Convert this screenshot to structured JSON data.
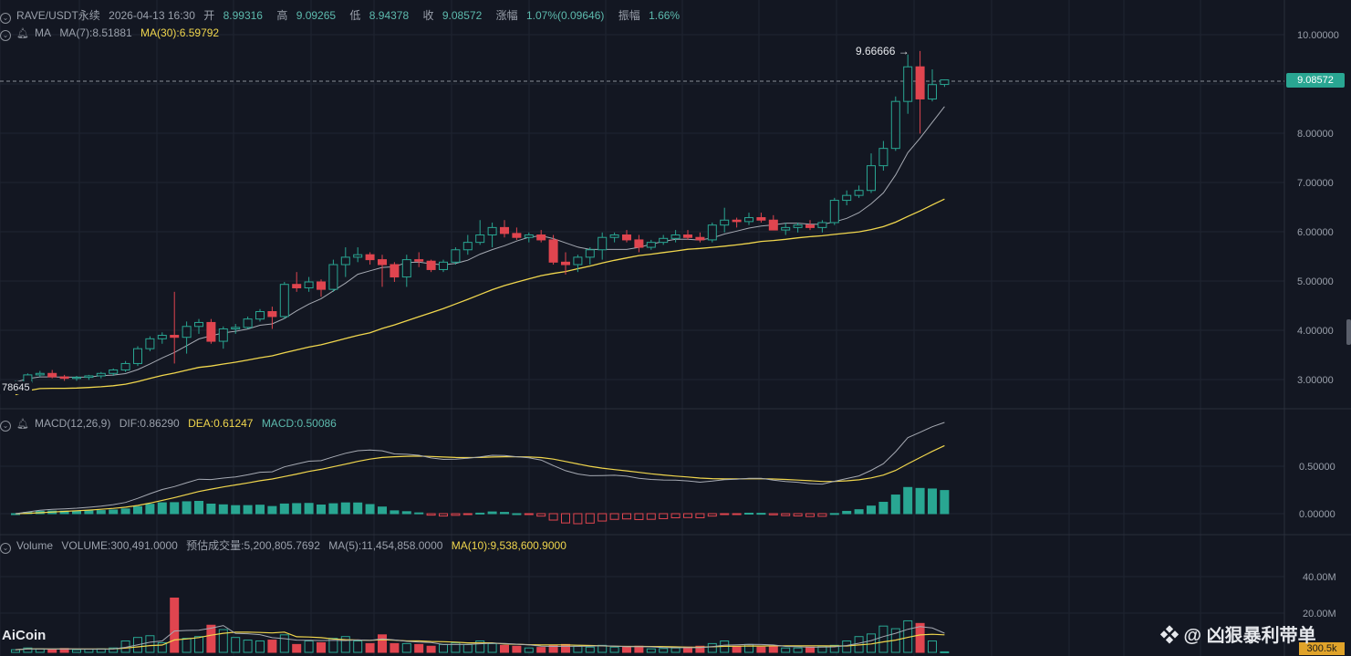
{
  "header": {
    "symbol": "RAVE/USDT永续",
    "datetime": "2026-04-13 16:30",
    "open_label": "开",
    "open": "8.99316",
    "high_label": "高",
    "high": "9.09265",
    "low_label": "低",
    "low": "8.94378",
    "close_label": "收",
    "close": "9.08572",
    "change_label": "涨幅",
    "change": "1.07%(0.09646)",
    "amp_label": "振幅",
    "amp": "1.66%"
  },
  "ma_legend": {
    "label": "MA",
    "ma7": "MA(7):8.51881",
    "ma30": "MA(30):6.59792"
  },
  "macd_legend": {
    "label": "MACD(12,26,9)",
    "dif": "DIF:0.86290",
    "dea": "DEA:0.61247",
    "macd": "MACD:0.50086"
  },
  "volume_legend": {
    "label": "Volume",
    "volume": "VOLUME:300,491.0000",
    "est": "预估成交量:5,200,805.7692",
    "ma5": "MA(5):11,454,858.0000",
    "ma10": "MA(10):9,538,600.9000"
  },
  "price_axis_labels": [
    "10.00000",
    "9.08572",
    "8.00000",
    "7.00000",
    "6.00000",
    "5.00000",
    "4.00000",
    "3.00000"
  ],
  "macd_axis_labels": [
    "0.50000",
    "0.00000"
  ],
  "volume_axis_labels": [
    "40.00M",
    "20.00M"
  ],
  "current_price": "9.08572",
  "current_volume": "300.5k",
  "high_marker": "9.66666 →",
  "left_value": "78645",
  "logo": "AiCoin",
  "watermark": "❖ @ 凶狠暴利带单",
  "colors": {
    "up": "#29a692",
    "down": "#e0454f",
    "ma7": "#a6aab3",
    "ma30": "#f0d64d",
    "background": "#131722"
  },
  "chart_data": {
    "type": "candlestick",
    "ohlc": [
      [
        2.88,
        3.0,
        2.85,
        2.97
      ],
      [
        2.97,
        3.15,
        2.95,
        3.12
      ],
      [
        3.12,
        3.2,
        3.08,
        3.15
      ],
      [
        3.15,
        3.22,
        3.05,
        3.08
      ],
      [
        3.08,
        3.12,
        3.0,
        3.05
      ],
      [
        3.05,
        3.1,
        3.0,
        3.07
      ],
      [
        3.07,
        3.12,
        3.02,
        3.1
      ],
      [
        3.1,
        3.18,
        3.05,
        3.15
      ],
      [
        3.15,
        3.25,
        3.1,
        3.22
      ],
      [
        3.22,
        3.4,
        3.18,
        3.35
      ],
      [
        3.35,
        3.7,
        3.3,
        3.65
      ],
      [
        3.65,
        3.9,
        3.6,
        3.85
      ],
      [
        3.85,
        3.98,
        3.75,
        3.92
      ],
      [
        3.92,
        4.8,
        3.35,
        3.88
      ],
      [
        3.88,
        4.2,
        3.55,
        4.1
      ],
      [
        4.1,
        4.25,
        3.95,
        4.18
      ],
      [
        4.18,
        4.25,
        3.75,
        3.8
      ],
      [
        3.8,
        4.1,
        3.65,
        4.05
      ],
      [
        4.05,
        4.15,
        3.95,
        4.08
      ],
      [
        4.08,
        4.3,
        4.05,
        4.25
      ],
      [
        4.25,
        4.45,
        4.2,
        4.4
      ],
      [
        4.4,
        4.5,
        4.05,
        4.3
      ],
      [
        4.3,
        5.0,
        4.25,
        4.95
      ],
      [
        4.95,
        5.2,
        4.8,
        4.88
      ],
      [
        4.88,
        5.1,
        4.8,
        5.0
      ],
      [
        5.0,
        5.05,
        4.7,
        4.85
      ],
      [
        4.85,
        5.45,
        4.8,
        5.35
      ],
      [
        5.35,
        5.7,
        5.1,
        5.5
      ],
      [
        5.5,
        5.7,
        5.4,
        5.55
      ],
      [
        5.55,
        5.6,
        5.35,
        5.45
      ],
      [
        5.45,
        5.55,
        4.9,
        5.35
      ],
      [
        5.35,
        5.4,
        5.0,
        5.1
      ],
      [
        5.1,
        5.55,
        4.9,
        5.45
      ],
      [
        5.45,
        5.6,
        5.3,
        5.42
      ],
      [
        5.42,
        5.45,
        5.2,
        5.25
      ],
      [
        5.25,
        5.45,
        5.2,
        5.4
      ],
      [
        5.4,
        5.7,
        5.35,
        5.65
      ],
      [
        5.65,
        5.95,
        5.55,
        5.8
      ],
      [
        5.8,
        6.25,
        5.75,
        5.95
      ],
      [
        5.95,
        6.2,
        5.7,
        6.1
      ],
      [
        6.1,
        6.25,
        5.9,
        5.98
      ],
      [
        5.98,
        6.1,
        5.85,
        5.9
      ],
      [
        5.9,
        6.0,
        5.8,
        5.95
      ],
      [
        5.95,
        6.05,
        5.8,
        5.85
      ],
      [
        5.85,
        5.95,
        5.35,
        5.4
      ],
      [
        5.4,
        5.6,
        5.15,
        5.35
      ],
      [
        5.35,
        5.55,
        5.2,
        5.5
      ],
      [
        5.5,
        5.7,
        5.35,
        5.65
      ],
      [
        5.65,
        6.0,
        5.45,
        5.9
      ],
      [
        5.9,
        6.0,
        5.8,
        5.95
      ],
      [
        5.95,
        6.05,
        5.8,
        5.85
      ],
      [
        5.85,
        5.95,
        5.6,
        5.7
      ],
      [
        5.7,
        5.85,
        5.65,
        5.8
      ],
      [
        5.8,
        5.95,
        5.75,
        5.88
      ],
      [
        5.88,
        6.05,
        5.8,
        5.95
      ],
      [
        5.95,
        6.05,
        5.85,
        5.9
      ],
      [
        5.9,
        6.0,
        5.8,
        5.85
      ],
      [
        5.85,
        6.2,
        5.8,
        6.15
      ],
      [
        6.15,
        6.5,
        6.0,
        6.25
      ],
      [
        6.25,
        6.3,
        6.1,
        6.22
      ],
      [
        6.22,
        6.4,
        6.15,
        6.3
      ],
      [
        6.3,
        6.4,
        6.2,
        6.25
      ],
      [
        6.25,
        6.35,
        6.05,
        6.05
      ],
      [
        6.05,
        6.2,
        5.95,
        6.1
      ],
      [
        6.1,
        6.2,
        6.0,
        6.15
      ],
      [
        6.15,
        6.25,
        6.05,
        6.1
      ],
      [
        6.1,
        6.25,
        6.0,
        6.2
      ],
      [
        6.2,
        6.7,
        6.15,
        6.65
      ],
      [
        6.65,
        6.85,
        6.55,
        6.75
      ],
      [
        6.75,
        6.95,
        6.7,
        6.85
      ],
      [
        6.85,
        7.6,
        6.8,
        7.35
      ],
      [
        7.35,
        7.85,
        7.25,
        7.7
      ],
      [
        7.7,
        8.75,
        7.65,
        8.65
      ],
      [
        8.65,
        9.6,
        8.4,
        9.35
      ],
      [
        9.35,
        9.67,
        8.0,
        8.7
      ],
      [
        8.7,
        9.3,
        8.65,
        8.99
      ],
      [
        8.99316,
        9.09265,
        8.94378,
        9.08572
      ]
    ],
    "volume_millions": [
      1.5,
      2.5,
      2.0,
      1.8,
      2.2,
      1.5,
      1.8,
      2.0,
      2.5,
      6.5,
      8.5,
      9.5,
      5.5,
      31.0,
      8.0,
      9.0,
      15.5,
      13.0,
      8.5,
      7.0,
      6.5,
      7.0,
      10.0,
      4.5,
      6.5,
      5.5,
      8.0,
      9.0,
      6.5,
      5.0,
      10.0,
      5.0,
      5.0,
      4.5,
      3.5,
      4.5,
      5.5,
      4.5,
      6.5,
      5.0,
      4.0,
      3.5,
      2.5,
      2.8,
      4.0,
      4.5,
      3.5,
      3.0,
      4.0,
      3.0,
      3.0,
      3.5,
      2.0,
      2.2,
      2.5,
      3.0,
      3.5,
      5.0,
      6.5,
      3.5,
      4.5,
      3.0,
      3.5,
      2.5,
      2.5,
      3.0,
      3.5,
      4.0,
      6.5,
      9.0,
      10.5,
      15.0,
      13.5,
      18.0,
      16.5,
      6.5,
      0.3
    ],
    "ylim": [
      2.5,
      10.7
    ],
    "volume_ylim": [
      0,
      50
    ]
  }
}
